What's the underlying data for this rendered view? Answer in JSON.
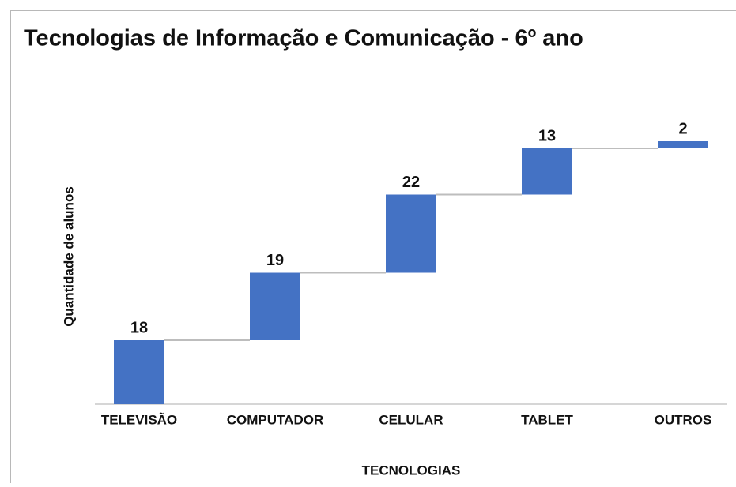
{
  "chart_data": {
    "type": "waterfall",
    "title": "Tecnologias de Informação e Comunicação - 6º ano",
    "x_label": "TECNOLOGIAS",
    "y_label": "Quantidade de alunos",
    "categories": [
      "TELEVISÃO",
      "COMPUTADOR",
      "CELULAR",
      "TABLET",
      "OUTROS"
    ],
    "values": [
      18,
      19,
      22,
      13,
      2
    ],
    "color": "#4472c4",
    "ylim": [
      0,
      80
    ]
  }
}
